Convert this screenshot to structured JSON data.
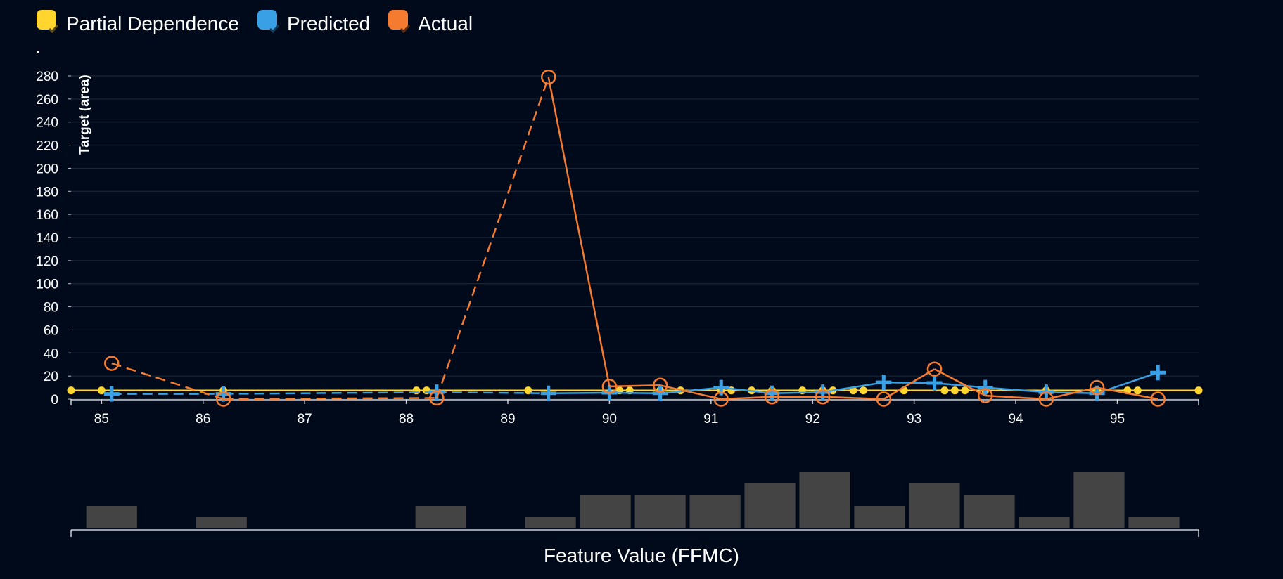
{
  "legend": {
    "items": [
      {
        "label": "Partial Dependence",
        "color": "#ffd52e"
      },
      {
        "label": "Predicted",
        "color": "#3aa0e6"
      },
      {
        "label": "Actual",
        "color": "#f47b2f"
      }
    ]
  },
  "chart_data": {
    "type": "line",
    "ylabel": "Target (area)",
    "xlabel": "Feature Value (FFMC)",
    "xlim": [
      84.7,
      95.8
    ],
    "ylim": [
      0,
      280
    ],
    "yticks": [
      0,
      20,
      40,
      60,
      80,
      100,
      120,
      140,
      160,
      180,
      200,
      220,
      240,
      260,
      280
    ],
    "xticks": [
      85,
      86,
      87,
      88,
      89,
      90,
      91,
      92,
      93,
      94,
      95
    ],
    "grid": true,
    "series": [
      {
        "name": "Partial Dependence",
        "color": "#ffd52e",
        "x": [
          84.7,
          85.0,
          86.2,
          88.1,
          88.2,
          89.2,
          90.1,
          90.2,
          90.5,
          90.7,
          91.1,
          91.2,
          91.4,
          91.6,
          91.9,
          92.1,
          92.2,
          92.4,
          92.5,
          92.9,
          93.3,
          93.4,
          93.5,
          93.7,
          94.3,
          94.8,
          95.1,
          95.2,
          95.8
        ],
        "values": [
          7.5,
          7.5,
          7.5,
          7.5,
          7.5,
          7.5,
          7.5,
          7.5,
          7.5,
          7.5,
          7.5,
          7.5,
          7.5,
          7.5,
          7.5,
          7.5,
          7.5,
          7.5,
          7.5,
          7.5,
          7.5,
          7.5,
          7.5,
          7.5,
          7.5,
          7.5,
          7.5,
          7.5,
          7.5
        ]
      },
      {
        "name": "Predicted",
        "color": "#3aa0e6",
        "x": [
          85.1,
          86.2,
          88.3,
          89.4,
          90.0,
          90.5,
          91.1,
          91.6,
          92.1,
          92.7,
          93.2,
          93.7,
          94.3,
          94.8,
          95.4
        ],
        "values": [
          4.5,
          4.5,
          6,
          5,
          5.5,
          5,
          10,
          5,
          6,
          14.5,
          14,
          10,
          6,
          5,
          23
        ]
      },
      {
        "name": "Actual",
        "color": "#f47b2f",
        "x": [
          85.1,
          86.2,
          88.3,
          89.4,
          90.0,
          90.5,
          91.1,
          91.6,
          92.1,
          92.7,
          93.2,
          93.7,
          94.3,
          94.8,
          95.4
        ],
        "values": [
          31,
          0,
          1,
          279,
          11,
          12,
          0,
          2,
          2,
          0,
          26,
          3,
          0,
          10,
          0
        ]
      }
    ],
    "histogram": {
      "bins": [
        {
          "x0": 84.85,
          "x1": 85.35,
          "count": 2
        },
        {
          "x0": 85.93,
          "x1": 86.43,
          "count": 1
        },
        {
          "x0": 88.09,
          "x1": 88.59,
          "count": 2
        },
        {
          "x0": 89.17,
          "x1": 89.67,
          "count": 1
        },
        {
          "x0": 89.71,
          "x1": 90.21,
          "count": 3
        },
        {
          "x0": 90.25,
          "x1": 90.75,
          "count": 3
        },
        {
          "x0": 90.79,
          "x1": 91.29,
          "count": 3
        },
        {
          "x0": 91.33,
          "x1": 91.83,
          "count": 4
        },
        {
          "x0": 91.87,
          "x1": 92.37,
          "count": 5
        },
        {
          "x0": 92.41,
          "x1": 92.91,
          "count": 2
        },
        {
          "x0": 92.95,
          "x1": 93.45,
          "count": 4
        },
        {
          "x0": 93.49,
          "x1": 93.99,
          "count": 3
        },
        {
          "x0": 94.03,
          "x1": 94.53,
          "count": 1
        },
        {
          "x0": 94.57,
          "x1": 95.07,
          "count": 5
        },
        {
          "x0": 95.11,
          "x1": 95.61,
          "count": 1
        }
      ],
      "max_count": 5
    }
  }
}
